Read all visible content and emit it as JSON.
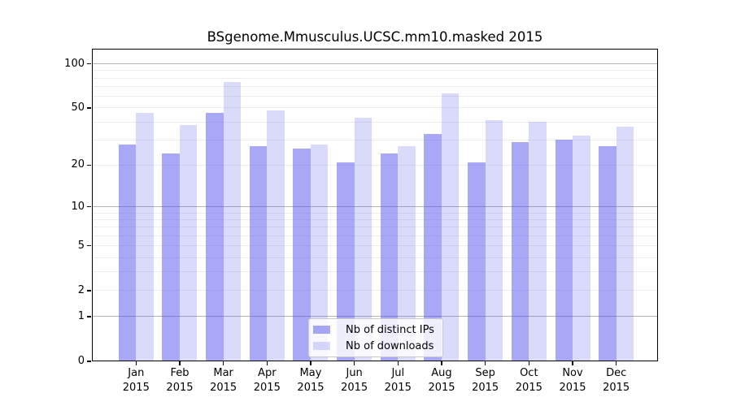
{
  "chart_data": {
    "type": "bar",
    "title": "BSgenome.Mmusculus.UCSC.mm10.masked 2015",
    "categories": [
      "Jan",
      "Feb",
      "Mar",
      "Apr",
      "May",
      "Jun",
      "Jul",
      "Aug",
      "Sep",
      "Oct",
      "Nov",
      "Dec"
    ],
    "category_year": "2015",
    "series": [
      {
        "name": "Nb of distinct IPs",
        "key": "distinct-ips",
        "color": "rgba(85,85,238,0.51)",
        "values": [
          28,
          24,
          46,
          27,
          26,
          21,
          24,
          33,
          21,
          29,
          30,
          27
        ]
      },
      {
        "name": "Nb of downloads",
        "key": "downloads",
        "color": "rgba(85,85,238,0.22)",
        "values": [
          46,
          38,
          75,
          48,
          28,
          43,
          27,
          63,
          41,
          40,
          32,
          37
        ]
      }
    ],
    "xlabel": "",
    "ylabel": "",
    "yscale": "log1p",
    "ylim": [
      0,
      127
    ],
    "yticks": [
      0,
      1,
      2,
      5,
      10,
      20,
      50,
      100
    ],
    "grid": {
      "major_at": [
        1,
        10,
        100
      ],
      "minor_at": [
        2,
        3,
        4,
        5,
        6,
        7,
        8,
        9,
        20,
        30,
        40,
        50,
        60,
        70,
        80,
        90
      ],
      "major_color": "#b3b3b3",
      "minor_color": "#ececec"
    },
    "legend": {
      "position": "lower center"
    }
  }
}
